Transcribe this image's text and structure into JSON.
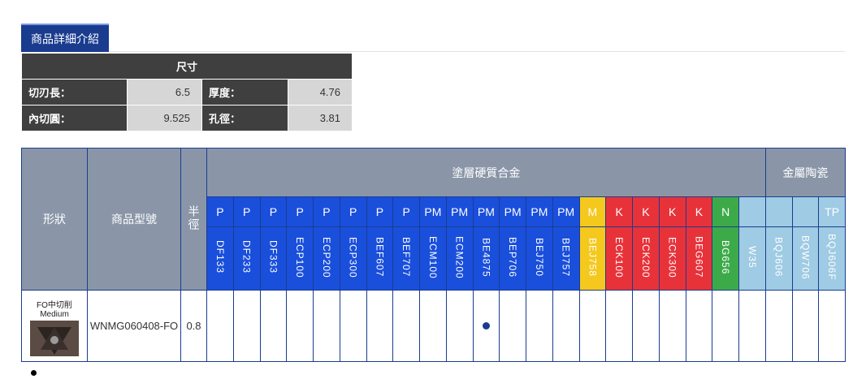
{
  "tab": {
    "label": "商品詳細介紹"
  },
  "dimensions": {
    "header": "尺寸",
    "rows": [
      [
        {
          "label": "切刃長：",
          "value": "6.5"
        },
        {
          "label": "厚度：",
          "value": "4.76"
        }
      ],
      [
        {
          "label": "內切圓：",
          "value": "9.525"
        },
        {
          "label": "孔徑：",
          "value": "3.81"
        }
      ]
    ]
  },
  "grid": {
    "col_shape": "形狀",
    "col_model": "商品型號",
    "col_radius": "半徑",
    "group_carbide": "塗層硬質合金",
    "group_cermet": "金屬陶瓷",
    "grades": [
      {
        "cat": "P",
        "code": "DF133",
        "color": "#1a4fdc"
      },
      {
        "cat": "P",
        "code": "DF233",
        "color": "#1a4fdc"
      },
      {
        "cat": "P",
        "code": "DF333",
        "color": "#1a4fdc"
      },
      {
        "cat": "P",
        "code": "ECP100",
        "color": "#1a4fdc"
      },
      {
        "cat": "P",
        "code": "ECP200",
        "color": "#1a4fdc"
      },
      {
        "cat": "P",
        "code": "ECP300",
        "color": "#1a4fdc"
      },
      {
        "cat": "P",
        "code": "BEF607",
        "color": "#1a4fdc"
      },
      {
        "cat": "P",
        "code": "BEF707",
        "color": "#1a4fdc"
      },
      {
        "cat": "PM",
        "code": "ECM100",
        "color": "#1a4fdc"
      },
      {
        "cat": "PM",
        "code": "ECM200",
        "color": "#1a4fdc"
      },
      {
        "cat": "PM",
        "code": "BE4875",
        "color": "#1a4fdc"
      },
      {
        "cat": "PM",
        "code": "BEP706",
        "color": "#1a4fdc"
      },
      {
        "cat": "PM",
        "code": "BEJ750",
        "color": "#1a4fdc"
      },
      {
        "cat": "PM",
        "code": "BEJ757",
        "color": "#1a4fdc"
      },
      {
        "cat": "M",
        "code": "BEJ758",
        "color": "#f5c81d"
      },
      {
        "cat": "K",
        "code": "ECK100",
        "color": "#e8323a"
      },
      {
        "cat": "K",
        "code": "ECK200",
        "color": "#e8323a"
      },
      {
        "cat": "K",
        "code": "ECK300",
        "color": "#e8323a"
      },
      {
        "cat": "K",
        "code": "BEG607",
        "color": "#e8323a"
      },
      {
        "cat": "N",
        "code": "BG656",
        "color": "#3daa4a"
      },
      {
        "cat": "",
        "code": "W35",
        "color": "#9fcbe4"
      },
      {
        "cat": "",
        "code": "BQJ606",
        "color": "#9fcbe4"
      },
      {
        "cat": "",
        "code": "BQW706",
        "color": "#9fcbe4"
      },
      {
        "cat": "TP",
        "code": "BQJ606F",
        "color": "#9fcbe4"
      }
    ],
    "rows": [
      {
        "shape_label_1": "FO中切削",
        "shape_label_2": "Medium",
        "model": "WNMG060408-FO",
        "radius": "0.8",
        "marked_grade_index": 10
      }
    ]
  }
}
